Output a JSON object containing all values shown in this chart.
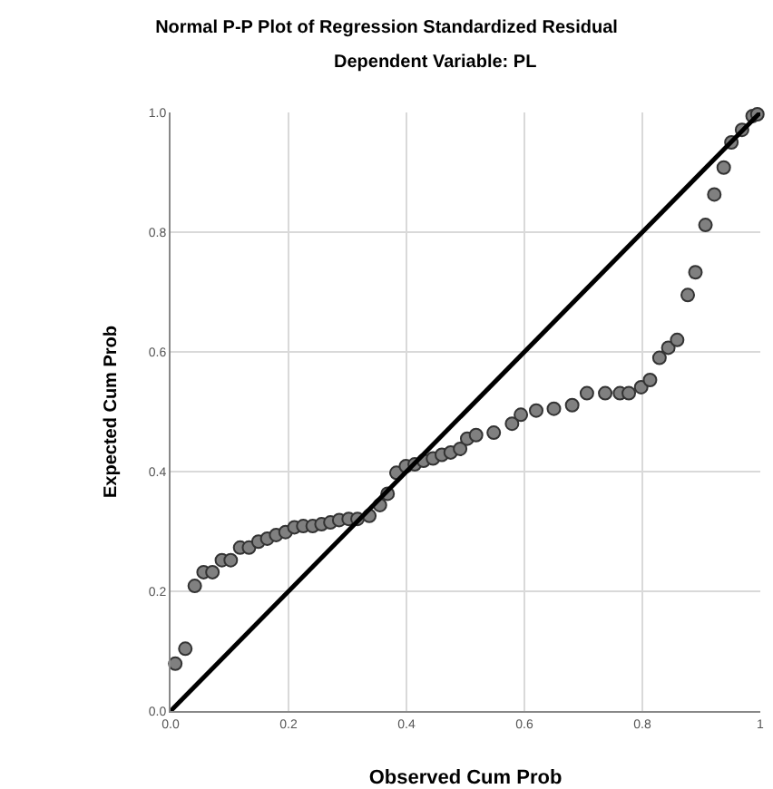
{
  "chart_data": {
    "type": "scatter",
    "title": "Normal P-P Plot of Regression Standardized Residual",
    "subtitle": "Dependent Variable: PL",
    "xlabel": "Observed Cum Prob",
    "ylabel": "Expected Cum Prob",
    "xlim": [
      0,
      1
    ],
    "ylim": [
      0,
      1
    ],
    "xticks": [
      {
        "value": 0,
        "label": "0.0"
      },
      {
        "value": 0.2,
        "label": "0.2"
      },
      {
        "value": 0.4,
        "label": "0.4"
      },
      {
        "value": 0.6,
        "label": "0.6"
      },
      {
        "value": 0.8,
        "label": "0.8"
      },
      1
    ],
    "yticks": [
      {
        "value": 0,
        "label": "0.0"
      },
      {
        "value": 0.2,
        "label": "0.2"
      },
      {
        "value": 0.4,
        "label": "0.4"
      },
      {
        "value": 0.6,
        "label": "0.6"
      },
      {
        "value": 0.8,
        "label": "0.8"
      },
      {
        "value": 1,
        "label": "1.0"
      }
    ],
    "grid": true,
    "marker": "circle",
    "series": [
      {
        "color": "#808080",
        "x": [
          0.008,
          0.025,
          0.041,
          0.056,
          0.071,
          0.087,
          0.102,
          0.118,
          0.133,
          0.149,
          0.164,
          0.179,
          0.195,
          0.21,
          0.225,
          0.241,
          0.256,
          0.271,
          0.286,
          0.302,
          0.317,
          0.337,
          0.355,
          0.368,
          0.383,
          0.399,
          0.414,
          0.429,
          0.445,
          0.46,
          0.475,
          0.491,
          0.503,
          0.518,
          0.548,
          0.579,
          0.594,
          0.62,
          0.65,
          0.681,
          0.706,
          0.737,
          0.762,
          0.777,
          0.798,
          0.813,
          0.829,
          0.844,
          0.859,
          0.877,
          0.89,
          0.907,
          0.922,
          0.938,
          0.951,
          0.969,
          0.987,
          0.995
        ],
        "values": [
          0.079,
          0.104,
          0.209,
          0.232,
          0.232,
          0.252,
          0.252,
          0.273,
          0.273,
          0.283,
          0.288,
          0.294,
          0.299,
          0.307,
          0.309,
          0.309,
          0.312,
          0.315,
          0.319,
          0.321,
          0.321,
          0.326,
          0.344,
          0.363,
          0.398,
          0.409,
          0.412,
          0.418,
          0.422,
          0.428,
          0.432,
          0.438,
          0.455,
          0.461,
          0.465,
          0.48,
          0.495,
          0.502,
          0.505,
          0.511,
          0.531,
          0.531,
          0.531,
          0.531,
          0.541,
          0.553,
          0.59,
          0.607,
          0.62,
          0.695,
          0.733,
          0.812,
          0.863,
          0.908,
          0.95,
          0.971,
          0.994,
          0.997
        ]
      },
      {
        "type": "line",
        "marker": "none",
        "color": "#000000",
        "x": [
          0,
          1
        ],
        "values": [
          0,
          1
        ]
      }
    ]
  }
}
